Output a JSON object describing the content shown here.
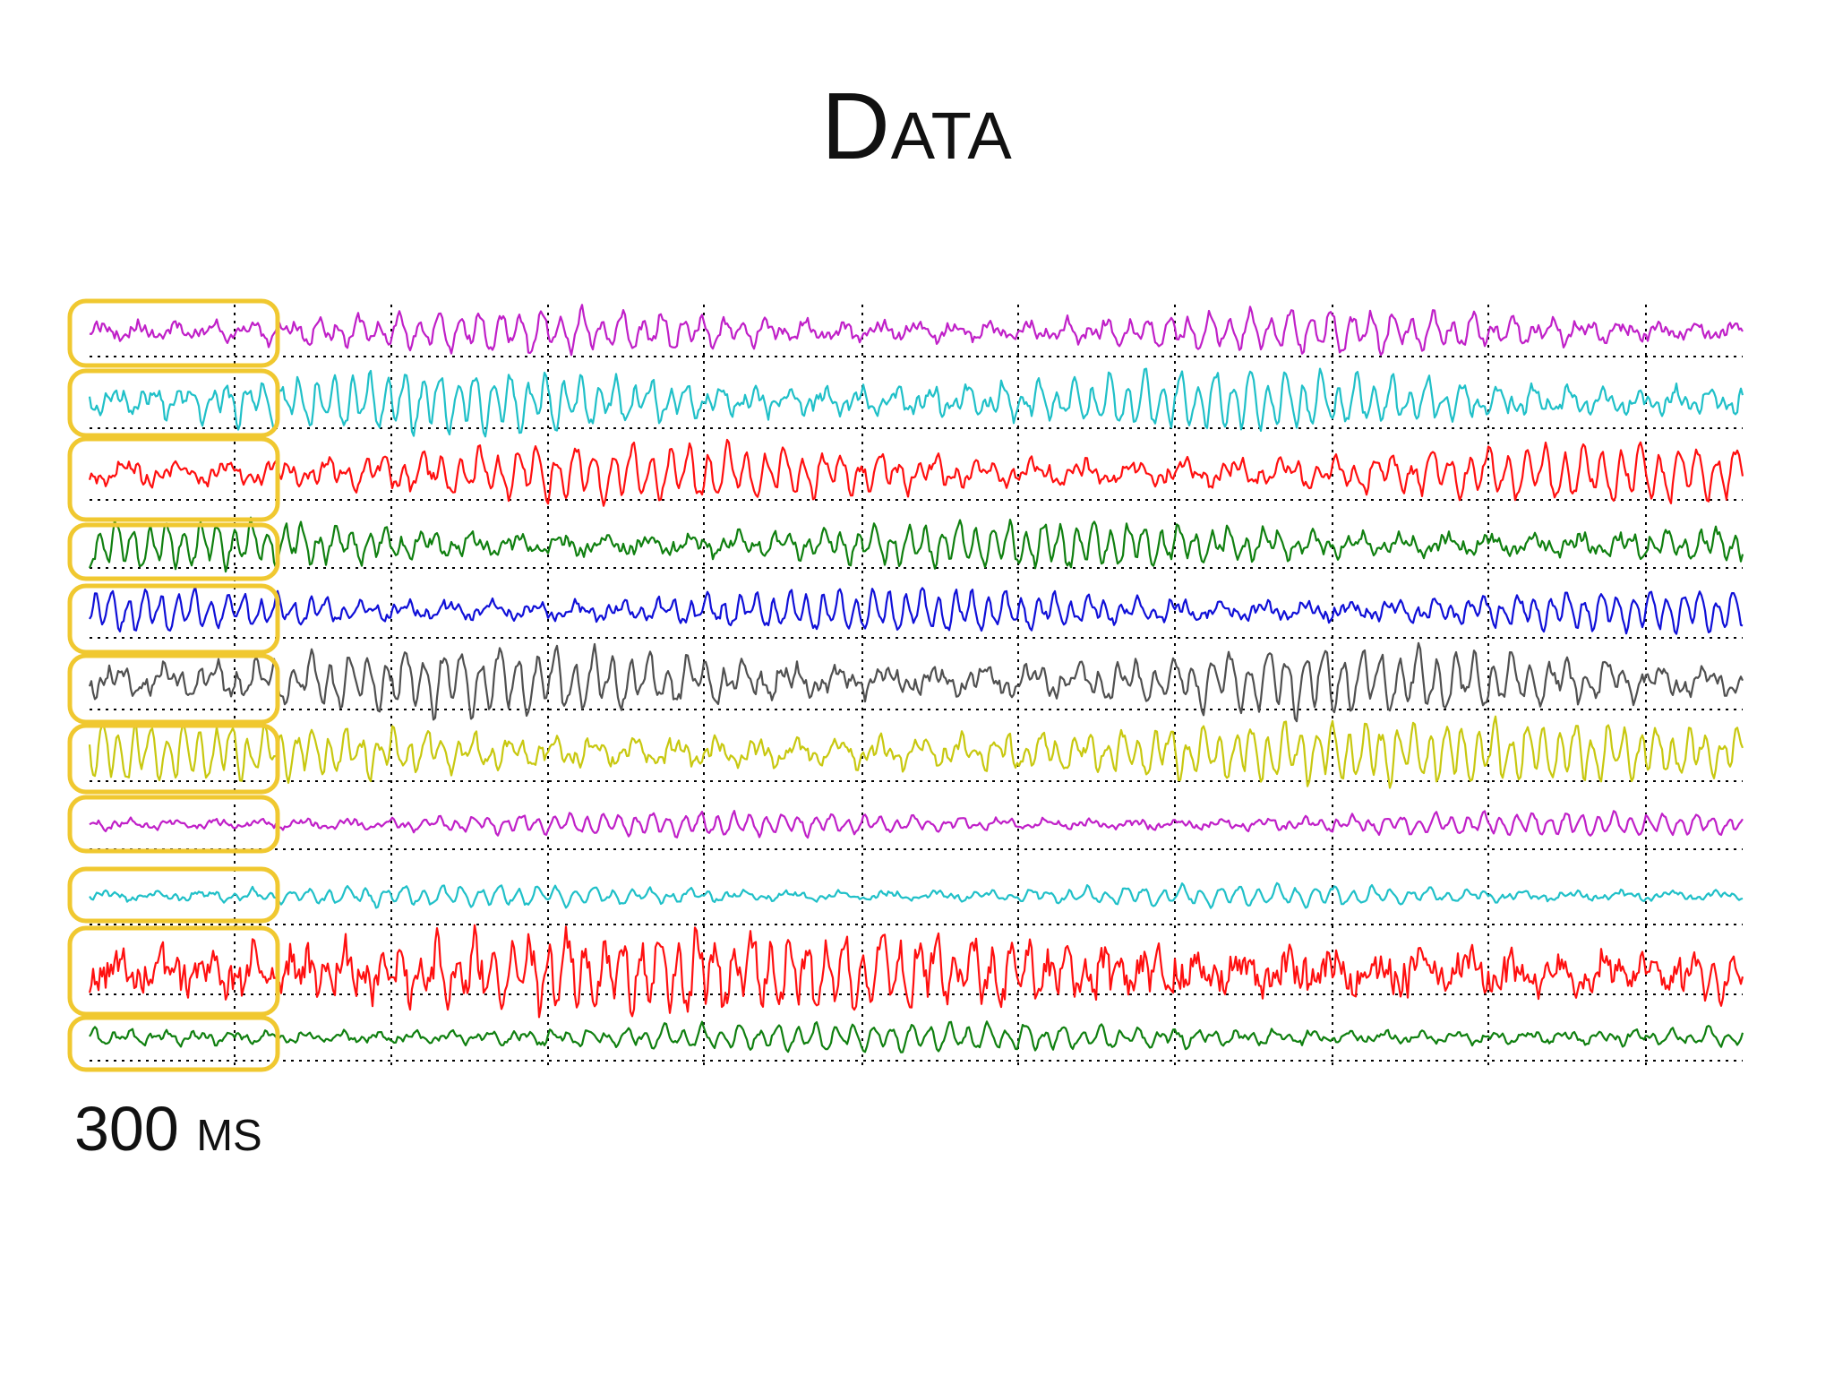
{
  "slide": {
    "title": "Data",
    "window_label": "300 ms"
  },
  "eeg": {
    "channel_count": 11,
    "channel_colors": [
      "#c020c8",
      "#20c0c8",
      "#ff1010",
      "#108010",
      "#1010d8",
      "#505050",
      "#c8c810",
      "#c020c8",
      "#20c0c8",
      "#ff1010",
      "#108010"
    ],
    "highlight_color": "#f0c830",
    "grid_color": "#000000"
  }
}
